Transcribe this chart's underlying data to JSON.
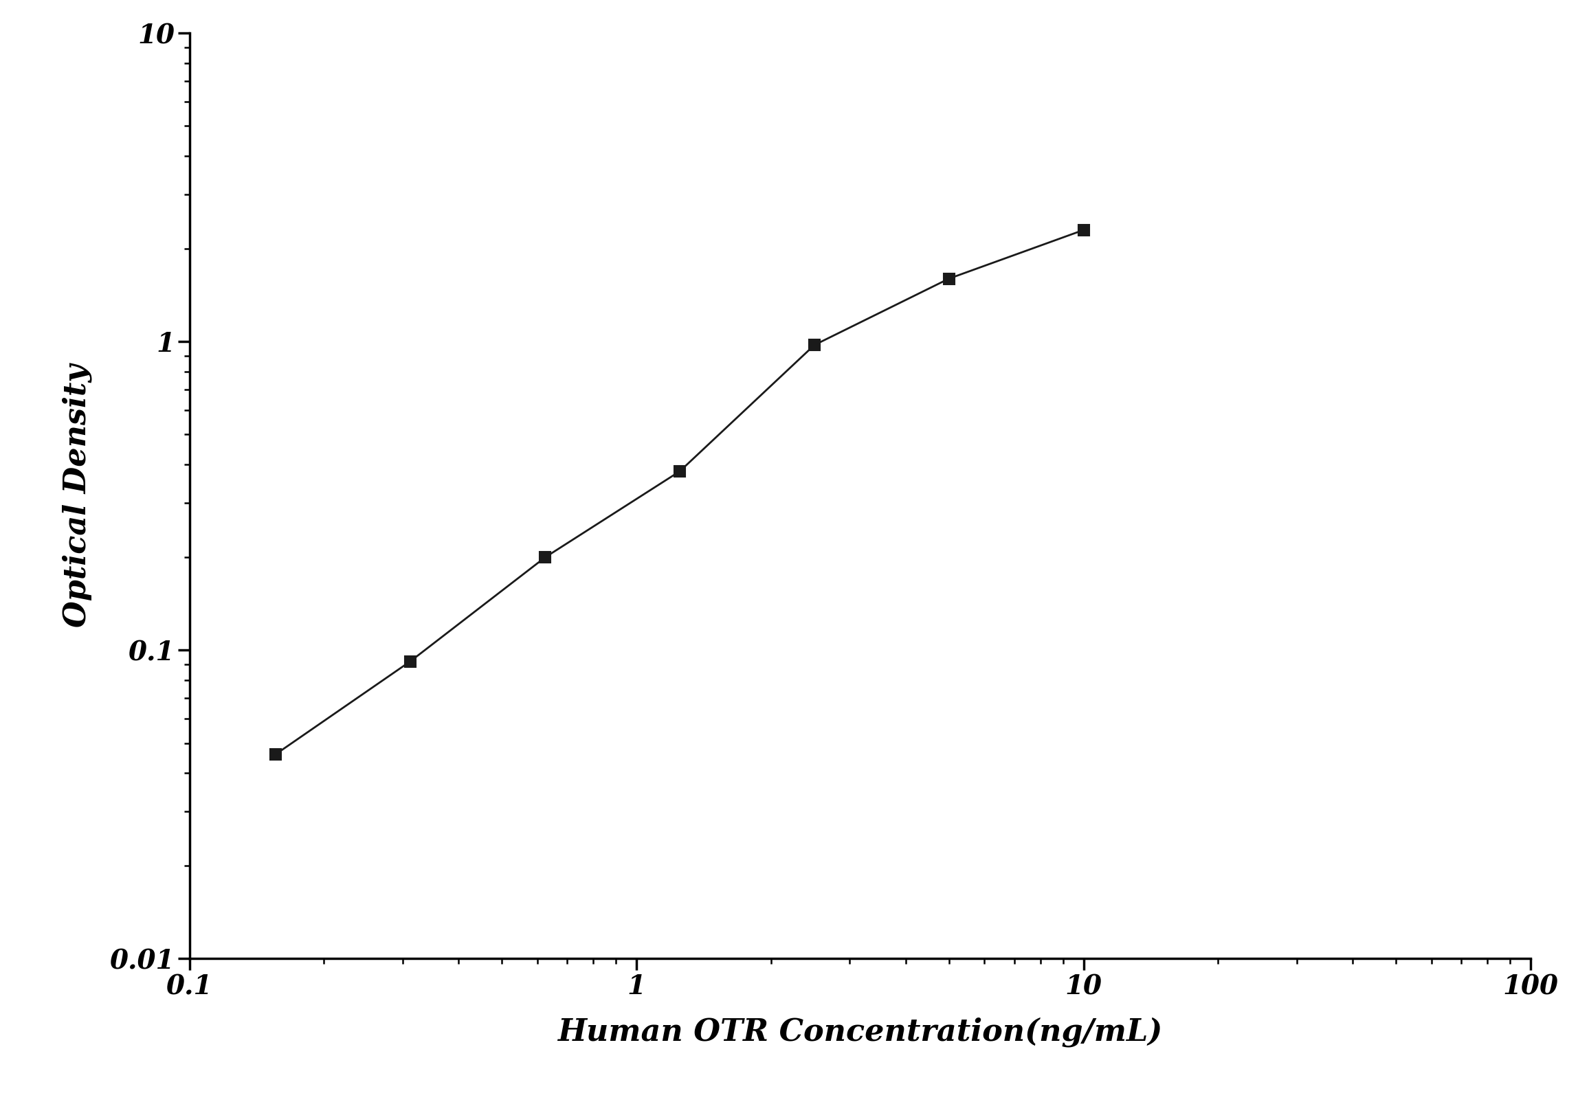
{
  "x": [
    0.156,
    0.312,
    0.625,
    1.25,
    2.5,
    5.0,
    10.0
  ],
  "y": [
    0.046,
    0.092,
    0.2,
    0.38,
    0.975,
    1.6,
    2.3
  ],
  "xlabel": "Human OTR Concentration(ng/mL)",
  "ylabel": "Optical Density",
  "xlim_log": [
    0.1,
    100
  ],
  "ylim_log": [
    0.01,
    10
  ],
  "line_color": "#1a1a1a",
  "marker": "s",
  "marker_size": 11,
  "marker_color": "#1a1a1a",
  "line_width": 2.0,
  "background_color": "#ffffff",
  "xlabel_fontsize": 32,
  "ylabel_fontsize": 32,
  "tick_fontsize": 28
}
